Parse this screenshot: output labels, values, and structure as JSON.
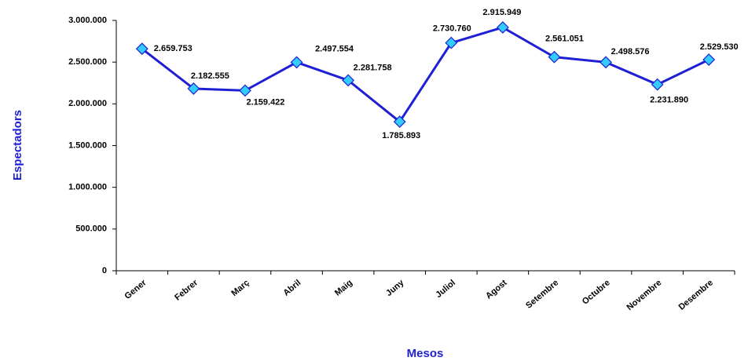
{
  "chart_data": {
    "type": "line",
    "x_label": "Mesos",
    "y_label": "Espectadors",
    "categories": [
      "Gener",
      "Febrer",
      "Març",
      "Abril",
      "Maig",
      "Juny",
      "Juliol",
      "Agost",
      "Setembre",
      "Octubre",
      "Novembre",
      "Desembre"
    ],
    "series": [
      {
        "name": "Espectadors",
        "color": "#1f1fd6",
        "marker_color": "#33ccff",
        "values": [
          2659753,
          2182555,
          2159422,
          2497554,
          2281758,
          1785893,
          2730760,
          2915949,
          2561051,
          2498576,
          2231890,
          2529530
        ],
        "value_labels": [
          "2.659.753",
          "2.182.555",
          "2.159.422",
          "2.497.554",
          "2.281.758",
          "1.785.893",
          "2.730.760",
          "2.915.949",
          "2.561.051",
          "2.498.576",
          "2.231.890",
          "2.529.530"
        ]
      }
    ],
    "ylim": [
      0,
      3000000
    ],
    "yticks": [
      {
        "value": 0,
        "label": "0"
      },
      {
        "value": 500000,
        "label": "500.000"
      },
      {
        "value": 1000000,
        "label": "1.000.000"
      },
      {
        "value": 1500000,
        "label": "1.500.000"
      },
      {
        "value": 2000000,
        "label": "2.000.000"
      },
      {
        "value": 2500000,
        "label": "2.500.000"
      },
      {
        "value": 3000000,
        "label": "3.000.000"
      }
    ],
    "grid": false,
    "legend": false
  }
}
